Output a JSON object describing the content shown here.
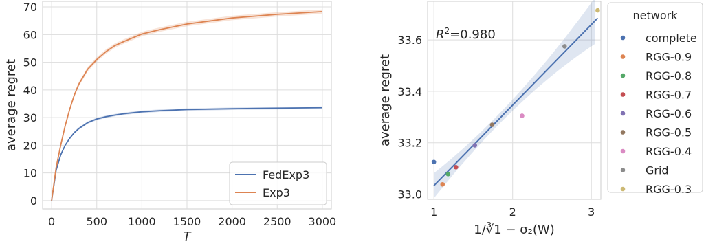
{
  "chart_data": [
    {
      "type": "line",
      "xlabel": "T",
      "ylabel": "average regret",
      "xlim": [
        -100,
        3100
      ],
      "ylim": [
        -3,
        72
      ],
      "xticks": [
        0,
        500,
        1000,
        1500,
        2000,
        2500,
        3000
      ],
      "yticks": [
        0,
        10,
        20,
        30,
        40,
        50,
        60,
        70
      ],
      "grid": true,
      "legend_position": "bottom-right",
      "series": [
        {
          "name": "FedExp3",
          "color": "#4c72b0",
          "x": [
            0,
            50,
            100,
            150,
            200,
            250,
            300,
            400,
            500,
            600,
            700,
            800,
            1000,
            1200,
            1500,
            2000,
            2500,
            3000
          ],
          "y": [
            0,
            11,
            16.5,
            20,
            22.5,
            24.5,
            26,
            28.2,
            29.5,
            30.3,
            30.9,
            31.4,
            32.1,
            32.5,
            32.9,
            33.2,
            33.4,
            33.6
          ]
        },
        {
          "name": "Exp3",
          "color": "#dd8452",
          "x": [
            0,
            50,
            100,
            150,
            200,
            250,
            300,
            400,
            500,
            600,
            700,
            800,
            1000,
            1200,
            1500,
            2000,
            2500,
            3000
          ],
          "y": [
            0,
            12,
            20,
            27,
            33,
            38,
            42,
            47.5,
            51,
            53.8,
            56,
            57.5,
            60.2,
            61.8,
            63.8,
            66,
            67.3,
            68.3
          ]
        }
      ]
    },
    {
      "type": "scatter",
      "xlabel": "1/∛1 − σ₂(W)",
      "ylabel": "average regret",
      "xlim": [
        0.92,
        3.12
      ],
      "ylim": [
        32.98,
        33.75
      ],
      "xticks": [
        1,
        2,
        3
      ],
      "yticks": [
        33.0,
        33.2,
        33.4,
        33.6
      ],
      "ytick_labels": [
        "33.0",
        "33.2",
        "33.4",
        "33.6"
      ],
      "grid": true,
      "annotation": {
        "prefix": "R",
        "sup": "2",
        "suffix": "=0.980"
      },
      "legend_title": "network",
      "legend_position": "outside-right",
      "fit_line": {
        "x": [
          1.0,
          3.08
        ],
        "y": [
          33.033,
          33.685
        ],
        "color": "#4c72b0"
      },
      "points": [
        {
          "name": "complete",
          "x": 1.0,
          "y": 33.125,
          "color": "#4c72b0"
        },
        {
          "name": "RGG-0.9",
          "x": 1.11,
          "y": 33.038,
          "color": "#dd8452"
        },
        {
          "name": "RGG-0.8",
          "x": 1.18,
          "y": 33.078,
          "color": "#55a868"
        },
        {
          "name": "RGG-0.7",
          "x": 1.28,
          "y": 33.105,
          "color": "#c44e52"
        },
        {
          "name": "RGG-0.6",
          "x": 1.52,
          "y": 33.19,
          "color": "#8172b3"
        },
        {
          "name": "RGG-0.5",
          "x": 1.74,
          "y": 33.27,
          "color": "#937860"
        },
        {
          "name": "RGG-0.4",
          "x": 2.12,
          "y": 33.305,
          "color": "#da8bc3"
        },
        {
          "name": "Grid",
          "x": 2.66,
          "y": 33.575,
          "color": "#8c8c8c"
        },
        {
          "name": "RGG-0.3",
          "x": 3.08,
          "y": 33.715,
          "color": "#ccb974"
        }
      ]
    }
  ]
}
